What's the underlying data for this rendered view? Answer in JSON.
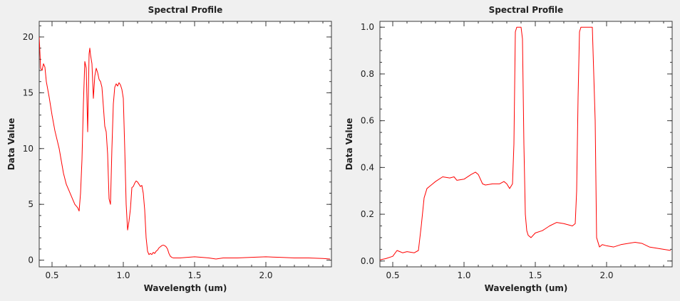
{
  "chart_data": [
    {
      "type": "line",
      "title": "Spectral Profile",
      "xlabel": "Wavelength (um)",
      "ylabel": "Data Value",
      "xlim": [
        0.41,
        2.46
      ],
      "ylim": [
        -0.6,
        21.4
      ],
      "xticks": [
        0.5,
        1.0,
        1.5,
        2.0
      ],
      "xtick_labels": [
        "0.5",
        "1.0",
        "1.5",
        "2.0"
      ],
      "yticks": [
        0,
        5,
        10,
        15,
        20
      ],
      "ytick_labels": [
        "0",
        "5",
        "10",
        "15",
        "20"
      ],
      "x_minor_step": 0.1,
      "y_minor_step": 1,
      "grid": false,
      "line_color": "#ff0000",
      "series": [
        {
          "x": [
            0.41,
            0.42,
            0.43,
            0.44,
            0.45,
            0.46,
            0.48,
            0.5,
            0.52,
            0.55,
            0.58,
            0.6,
            0.62,
            0.64,
            0.66,
            0.68,
            0.69,
            0.7,
            0.71,
            0.72,
            0.73,
            0.74,
            0.75,
            0.76,
            0.765,
            0.77,
            0.78,
            0.79,
            0.8,
            0.81,
            0.82,
            0.83,
            0.84,
            0.85,
            0.86,
            0.87,
            0.88,
            0.89,
            0.9,
            0.91,
            0.92,
            0.93,
            0.94,
            0.95,
            0.96,
            0.97,
            0.98,
            0.99,
            1.0,
            1.01,
            1.02,
            1.03,
            1.04,
            1.05,
            1.06,
            1.07,
            1.08,
            1.09,
            1.1,
            1.11,
            1.12,
            1.13,
            1.14,
            1.15,
            1.16,
            1.17,
            1.18,
            1.19,
            1.2,
            1.21,
            1.22,
            1.23,
            1.24,
            1.25,
            1.26,
            1.27,
            1.28,
            1.29,
            1.3,
            1.31,
            1.32,
            1.33,
            1.34,
            1.35,
            1.4,
            1.45,
            1.5,
            1.55,
            1.6,
            1.65,
            1.7,
            1.75,
            1.8,
            1.9,
            2.0,
            2.1,
            2.2,
            2.3,
            2.4,
            2.45
          ],
          "y": [
            20.0,
            17.2,
            17.0,
            17.6,
            17.3,
            16.0,
            14.6,
            13.0,
            11.6,
            10.0,
            7.8,
            6.8,
            6.2,
            5.6,
            5.0,
            4.7,
            4.4,
            6.0,
            9.0,
            14.0,
            17.8,
            17.2,
            11.5,
            18.5,
            19.0,
            18.4,
            17.6,
            14.5,
            16.5,
            17.2,
            16.8,
            16.2,
            16.0,
            15.5,
            13.8,
            12.0,
            11.5,
            9.5,
            5.5,
            5.0,
            10.0,
            14.0,
            15.5,
            15.8,
            15.6,
            15.9,
            15.7,
            15.3,
            14.5,
            10.0,
            5.0,
            2.7,
            3.5,
            4.6,
            6.5,
            6.6,
            6.9,
            7.1,
            7.0,
            6.8,
            6.6,
            6.7,
            6.0,
            4.5,
            2.0,
            0.8,
            0.5,
            0.6,
            0.5,
            0.7,
            0.6,
            0.8,
            0.9,
            1.1,
            1.2,
            1.3,
            1.35,
            1.3,
            1.2,
            1.0,
            0.6,
            0.35,
            0.25,
            0.2,
            0.2,
            0.25,
            0.3,
            0.25,
            0.2,
            0.1,
            0.2,
            0.2,
            0.2,
            0.25,
            0.3,
            0.25,
            0.2,
            0.2,
            0.15,
            0.1
          ]
        }
      ]
    },
    {
      "type": "line",
      "title": "Spectral Profile",
      "xlabel": "Wavelength (um)",
      "ylabel": "Data Value",
      "xlim": [
        0.41,
        2.46
      ],
      "ylim": [
        -0.025,
        1.025
      ],
      "xticks": [
        0.5,
        1.0,
        1.5,
        2.0
      ],
      "xtick_labels": [
        "0.5",
        "1.0",
        "1.5",
        "2.0"
      ],
      "yticks": [
        0.0,
        0.2,
        0.4,
        0.6,
        0.8,
        1.0
      ],
      "ytick_labels": [
        "0.0",
        "0.2",
        "0.4",
        "0.6",
        "0.8",
        "1.0"
      ],
      "x_minor_step": 0.1,
      "y_minor_step": 0.05,
      "grid": false,
      "line_color": "#ff0000",
      "series": [
        {
          "x": [
            0.41,
            0.45,
            0.5,
            0.53,
            0.55,
            0.57,
            0.6,
            0.65,
            0.68,
            0.7,
            0.72,
            0.74,
            0.76,
            0.78,
            0.8,
            0.85,
            0.9,
            0.93,
            0.95,
            1.0,
            1.05,
            1.08,
            1.1,
            1.13,
            1.15,
            1.2,
            1.25,
            1.28,
            1.3,
            1.32,
            1.34,
            1.35,
            1.36,
            1.37,
            1.38,
            1.39,
            1.4,
            1.41,
            1.42,
            1.43,
            1.44,
            1.45,
            1.47,
            1.5,
            1.55,
            1.6,
            1.65,
            1.7,
            1.73,
            1.76,
            1.78,
            1.79,
            1.8,
            1.81,
            1.82,
            1.83,
            1.84,
            1.85,
            1.88,
            1.9,
            1.92,
            1.93,
            1.95,
            1.97,
            2.0,
            2.05,
            2.1,
            2.2,
            2.25,
            2.3,
            2.35,
            2.4,
            2.45
          ],
          "y": [
            0.005,
            0.01,
            0.02,
            0.045,
            0.04,
            0.035,
            0.04,
            0.035,
            0.045,
            0.15,
            0.27,
            0.31,
            0.32,
            0.33,
            0.34,
            0.36,
            0.355,
            0.36,
            0.345,
            0.35,
            0.37,
            0.38,
            0.37,
            0.33,
            0.325,
            0.33,
            0.33,
            0.34,
            0.33,
            0.31,
            0.33,
            0.5,
            0.98,
            1.0,
            1.0,
            1.0,
            1.0,
            0.95,
            0.5,
            0.2,
            0.13,
            0.11,
            0.1,
            0.12,
            0.13,
            0.15,
            0.165,
            0.16,
            0.155,
            0.15,
            0.16,
            0.3,
            0.7,
            0.98,
            1.0,
            1.0,
            1.0,
            1.0,
            1.0,
            1.0,
            0.6,
            0.1,
            0.06,
            0.07,
            0.065,
            0.06,
            0.07,
            0.08,
            0.075,
            0.06,
            0.055,
            0.05,
            0.045
          ]
        }
      ]
    }
  ]
}
